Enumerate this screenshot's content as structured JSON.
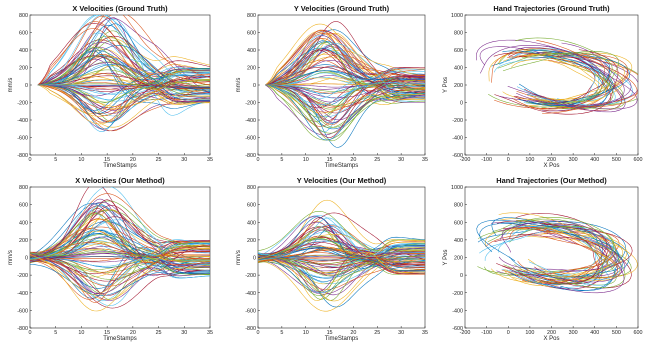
{
  "colors": [
    "#0072bd",
    "#d95319",
    "#edb120",
    "#7e2f8e",
    "#77ac30",
    "#4dbeee",
    "#a2142f"
  ],
  "chart_data": [
    {
      "type": "line",
      "title": "X Velocities (Ground Truth)",
      "xlabel": "TimeStamps",
      "ylabel": "mm/s",
      "xlim": [
        0,
        35
      ],
      "ylim": [
        -800,
        800
      ],
      "xticks": [
        "0",
        "5",
        "10",
        "15",
        "20",
        "25",
        "30",
        "35"
      ],
      "yticks": [
        "800",
        "600",
        "400",
        "200",
        "0",
        "-200",
        "-400",
        "-600",
        "-800"
      ],
      "series_count": 90,
      "peak_time": 14.5,
      "peak_range": [
        -560,
        780
      ],
      "data_start": 1.5,
      "noise_start": 0
    },
    {
      "type": "line",
      "title": "Y Velocities (Ground Truth)",
      "xlabel": "TimeStamps",
      "ylabel": "mm/s",
      "xlim": [
        0,
        35
      ],
      "ylim": [
        -800,
        800
      ],
      "xticks": [
        "0",
        "5",
        "10",
        "15",
        "20",
        "25",
        "30",
        "35"
      ],
      "yticks": [
        "800",
        "600",
        "400",
        "200",
        "0",
        "-200",
        "-400",
        "-600",
        "-800"
      ],
      "series_count": 90,
      "peak_time": 14.5,
      "peak_range": [
        -620,
        660
      ],
      "data_start": 1.5,
      "noise_start": 0
    },
    {
      "type": "line",
      "title": "Hand Trajectories (Ground Truth)",
      "xlabel": "X Pos",
      "ylabel": "Y Pos",
      "xlim": [
        -200,
        600
      ],
      "ylim": [
        -600,
        1000
      ],
      "xticks": [
        "-200",
        "-100",
        "0",
        "100",
        "200",
        "300",
        "400",
        "500",
        "600"
      ],
      "yticks": [
        "1000",
        "800",
        "600",
        "400",
        "200",
        "0",
        "-200",
        "-400",
        "-600"
      ],
      "series_count": 40,
      "center": [
        210,
        270
      ],
      "radii": [
        330,
        420
      ],
      "tilt_deg": 40,
      "arc_start": 200,
      "arc_span": 290,
      "jitter": 0.12
    },
    {
      "type": "line",
      "title": "X Velocities (Our Method)",
      "xlabel": "TimeStamps",
      "ylabel": "mm/s",
      "xlim": [
        0,
        35
      ],
      "ylim": [
        -800,
        800
      ],
      "xticks": [
        "0",
        "5",
        "10",
        "15",
        "20",
        "25",
        "30",
        "35"
      ],
      "yticks": [
        "800",
        "600",
        "400",
        "200",
        "0",
        "-200",
        "-400",
        "-600",
        "-800"
      ],
      "series_count": 90,
      "peak_time": 14,
      "peak_range": [
        -560,
        700
      ],
      "data_start": 0,
      "noise_start": 60
    },
    {
      "type": "line",
      "title": "Y Velocities (Our Method)",
      "xlabel": "TimeStamps",
      "ylabel": "mm/s",
      "xlim": [
        0,
        35
      ],
      "ylim": [
        -800,
        800
      ],
      "xticks": [
        "0",
        "5",
        "10",
        "15",
        "20",
        "25",
        "30",
        "35"
      ],
      "yticks": [
        "800",
        "600",
        "400",
        "200",
        "0",
        "-200",
        "-400",
        "-600",
        "-800"
      ],
      "series_count": 90,
      "peak_time": 14,
      "peak_range": [
        -560,
        560
      ],
      "data_start": 0,
      "noise_start": 60
    },
    {
      "type": "line",
      "title": "Hand Trajectories (Our Method)",
      "xlabel": "X Pos",
      "ylabel": "Y Pos",
      "xlim": [
        -200,
        600
      ],
      "ylim": [
        -600,
        1000
      ],
      "xticks": [
        "-200",
        "-100",
        "0",
        "100",
        "200",
        "300",
        "400",
        "500",
        "600"
      ],
      "yticks": [
        "1000",
        "800",
        "600",
        "400",
        "200",
        "0",
        "-200",
        "-400",
        "-600"
      ],
      "series_count": 40,
      "center": [
        200,
        250
      ],
      "radii": [
        300,
        420
      ],
      "tilt_deg": 38,
      "arc_start": 190,
      "arc_span": 320,
      "jitter": 0.15
    }
  ]
}
